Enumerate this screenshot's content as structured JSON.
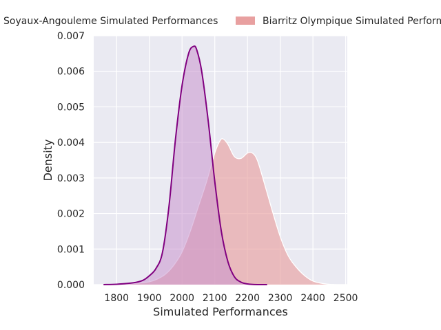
{
  "chart_data": {
    "type": "area",
    "title": "",
    "xlabel": "Simulated Performances",
    "ylabel": "Density",
    "xlim": [
      1730,
      2505
    ],
    "ylim": [
      0,
      0.007
    ],
    "xticks": [
      "1800",
      "1900",
      "2000",
      "2100",
      "2200",
      "2300",
      "2400",
      "2500"
    ],
    "yticks": [
      "0.000",
      "0.001",
      "0.002",
      "0.003",
      "0.004",
      "0.005",
      "0.006",
      "0.007"
    ],
    "grid": true,
    "legend_position": "top",
    "series": [
      {
        "name": "Biarritz Olympique Simulated Performances",
        "color": "#e8a0a0",
        "line_color": "#ffffff",
        "x": [
          1760,
          1800,
          1850,
          1900,
          1925,
          1950,
          1975,
          2000,
          2025,
          2050,
          2075,
          2100,
          2115,
          2125,
          2140,
          2160,
          2180,
          2200,
          2215,
          2230,
          2250,
          2275,
          2300,
          2325,
          2350,
          2375,
          2400,
          2425,
          2450,
          2475,
          2500
        ],
        "y": [
          0.0,
          1e-05,
          3e-05,
          8e-05,
          0.00016,
          0.0003,
          0.00055,
          0.00092,
          0.0015,
          0.0022,
          0.0029,
          0.0037,
          0.00403,
          0.0041,
          0.00395,
          0.0036,
          0.00355,
          0.0037,
          0.0037,
          0.0035,
          0.0029,
          0.0021,
          0.00135,
          0.0008,
          0.00048,
          0.00025,
          0.0001,
          4e-05,
          1e-05,
          0.0,
          0.0
        ]
      },
      {
        "name": "Soyaux-Angouleme Simulated Performances",
        "color": "#c994cd",
        "line_color": "#800080",
        "x": [
          1760,
          1800,
          1850,
          1880,
          1900,
          1920,
          1940,
          1960,
          1980,
          2000,
          2020,
          2035,
          2045,
          2060,
          2080,
          2100,
          2120,
          2140,
          2160,
          2180,
          2200,
          2230,
          2260
        ],
        "y": [
          0.0,
          1e-05,
          5e-05,
          0.00012,
          0.00025,
          0.00045,
          0.0009,
          0.0022,
          0.0041,
          0.0056,
          0.0065,
          0.0067,
          0.0066,
          0.006,
          0.0046,
          0.0029,
          0.0015,
          0.00065,
          0.00022,
          7e-05,
          2e-05,
          0.0,
          0.0
        ]
      }
    ]
  }
}
